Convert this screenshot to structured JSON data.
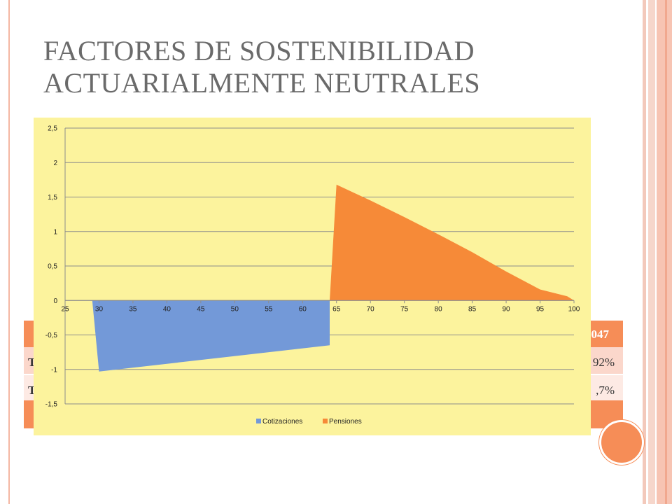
{
  "slide": {
    "title_line1": "FACTORES DE SOSTENIBILIDAD",
    "title_line2": "ACTUARIALMENTE NEUTRALES"
  },
  "table_fragments": {
    "header_right": "047",
    "row1_left": "T",
    "row1_right": "92%",
    "row2_left": "T",
    "row2_right": ",7%"
  },
  "colors": {
    "cotizaciones": "#7399d8",
    "pensiones": "#f68a38",
    "panel": "#fcf39d",
    "accent": "#f68d57"
  },
  "chart_data": {
    "type": "area",
    "xlim": [
      25,
      100
    ],
    "ylim": [
      -1.5,
      2.5
    ],
    "x_ticks": [
      "25",
      "30",
      "35",
      "40",
      "45",
      "50",
      "55",
      "60",
      "65",
      "70",
      "75",
      "80",
      "85",
      "90",
      "95",
      "100"
    ],
    "y_ticks": [
      "2,5",
      "2",
      "1,5",
      "1",
      "0,5",
      "0",
      "-0,5",
      "-1",
      "-1,5"
    ],
    "grid": true,
    "legend_position": "bottom",
    "series": [
      {
        "name": "Cotizaciones",
        "color": "#7399d8",
        "points": [
          [
            29,
            0
          ],
          [
            30,
            -1.03
          ],
          [
            64,
            -0.65
          ],
          [
            64,
            0
          ]
        ]
      },
      {
        "name": "Pensiones",
        "color": "#f68a38",
        "points": [
          [
            64,
            0
          ],
          [
            65,
            1.68
          ],
          [
            70,
            1.45
          ],
          [
            75,
            1.21
          ],
          [
            80,
            0.96
          ],
          [
            85,
            0.7
          ],
          [
            90,
            0.42
          ],
          [
            95,
            0.16
          ],
          [
            99,
            0.06
          ],
          [
            100,
            0
          ]
        ]
      }
    ]
  }
}
